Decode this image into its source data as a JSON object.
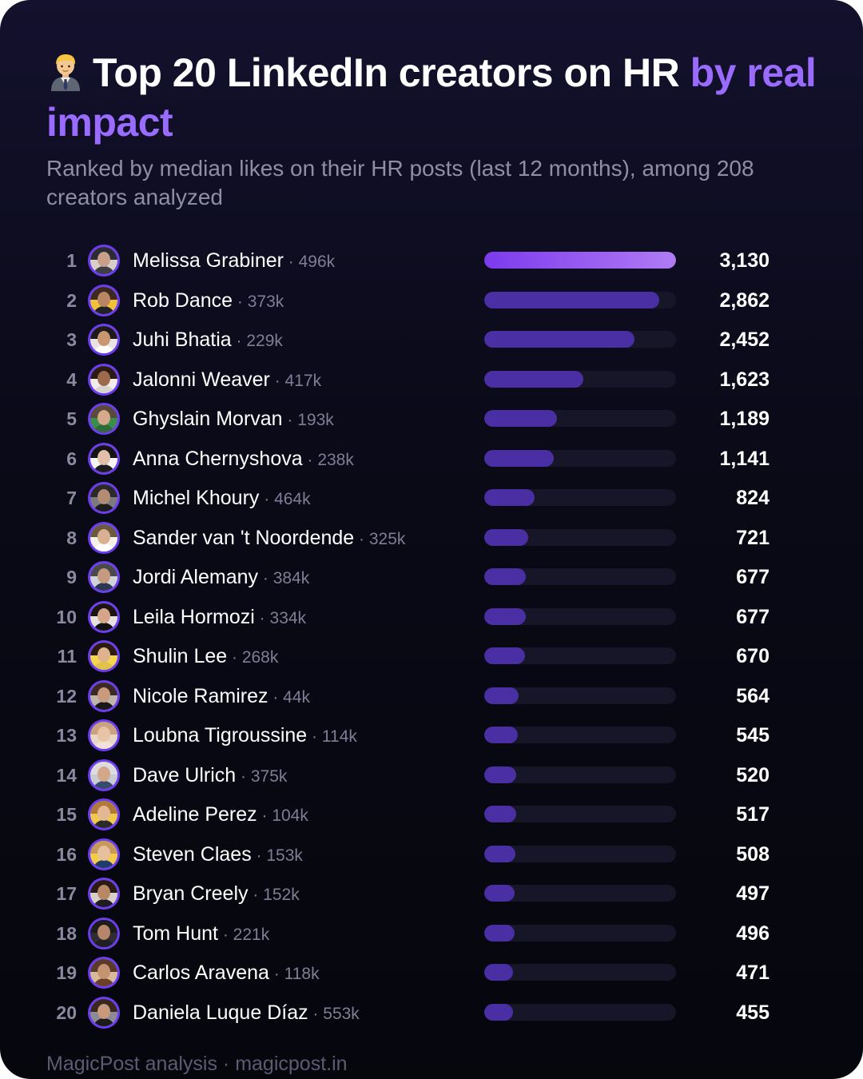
{
  "title": {
    "emoji_icon": "office-worker-emoji",
    "main": "Top 20 LinkedIn creators on HR ",
    "highlight": "by real impact",
    "highlight_color": "#9a6bff"
  },
  "subtitle": "Ranked by median likes on their HR posts (last 12 months), among 208 creators analyzed",
  "separator": "·",
  "footer": "MagicPost analysis · magicpost.in",
  "colors": {
    "bar_top": "#7c3aed",
    "bar": "#4a2ea3",
    "track": "#171628",
    "avatar_ring": "#6d3df0"
  },
  "chart_data": {
    "type": "bar",
    "orientation": "horizontal",
    "value_label": "median likes on HR posts",
    "xlim": [
      0,
      3130
    ],
    "grid": false,
    "rows": [
      {
        "rank": "1",
        "name": "Melissa Grabiner",
        "followers": "496k",
        "value": 3130,
        "value_label": "3,130"
      },
      {
        "rank": "2",
        "name": "Rob Dance",
        "followers": "373k",
        "value": 2862,
        "value_label": "2,862"
      },
      {
        "rank": "3",
        "name": "Juhi Bhatia",
        "followers": "229k",
        "value": 2452,
        "value_label": "2,452"
      },
      {
        "rank": "4",
        "name": "Jalonni Weaver",
        "followers": "417k",
        "value": 1623,
        "value_label": "1,623"
      },
      {
        "rank": "5",
        "name": "Ghyslain Morvan",
        "followers": "193k",
        "value": 1189,
        "value_label": "1,189"
      },
      {
        "rank": "6",
        "name": "Anna Chernyshova",
        "followers": "238k",
        "value": 1141,
        "value_label": "1,141"
      },
      {
        "rank": "7",
        "name": "Michel Khoury",
        "followers": "464k",
        "value": 824,
        "value_label": "824"
      },
      {
        "rank": "8",
        "name": "Sander van 't Noordende",
        "followers": "325k",
        "value": 721,
        "value_label": "721"
      },
      {
        "rank": "9",
        "name": "Jordi Alemany",
        "followers": "384k",
        "value": 677,
        "value_label": "677"
      },
      {
        "rank": "10",
        "name": "Leila Hormozi",
        "followers": "334k",
        "value": 677,
        "value_label": "677"
      },
      {
        "rank": "11",
        "name": "Shulin Lee",
        "followers": "268k",
        "value": 670,
        "value_label": "670"
      },
      {
        "rank": "12",
        "name": "Nicole Ramirez",
        "followers": "44k",
        "value": 564,
        "value_label": "564"
      },
      {
        "rank": "13",
        "name": "Loubna Tigroussine",
        "followers": "114k",
        "value": 545,
        "value_label": "545"
      },
      {
        "rank": "14",
        "name": "Dave Ulrich",
        "followers": "375k",
        "value": 520,
        "value_label": "520"
      },
      {
        "rank": "15",
        "name": "Adeline Perez",
        "followers": "104k",
        "value": 517,
        "value_label": "517"
      },
      {
        "rank": "16",
        "name": "Steven Claes",
        "followers": "153k",
        "value": 508,
        "value_label": "508"
      },
      {
        "rank": "17",
        "name": "Bryan Creely",
        "followers": "152k",
        "value": 497,
        "value_label": "497"
      },
      {
        "rank": "18",
        "name": "Tom Hunt",
        "followers": "221k",
        "value": 496,
        "value_label": "496"
      },
      {
        "rank": "19",
        "name": "Carlos Aravena",
        "followers": "118k",
        "value": 471,
        "value_label": "471"
      },
      {
        "rank": "20",
        "name": "Daniela Luque Díaz",
        "followers": "553k",
        "value": 455,
        "value_label": "455"
      }
    ]
  }
}
